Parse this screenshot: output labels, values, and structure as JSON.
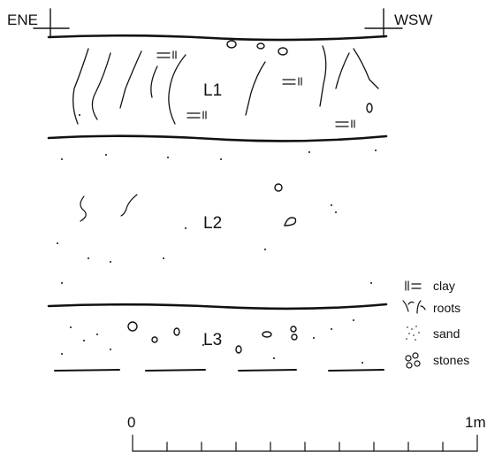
{
  "orientation": {
    "left": "ENE",
    "right": "WSW"
  },
  "layers": [
    {
      "label": "L1"
    },
    {
      "label": "L2"
    },
    {
      "label": "L3"
    }
  ],
  "legend": [
    {
      "label": "clay"
    },
    {
      "label": "roots"
    },
    {
      "label": "sand"
    },
    {
      "label": "stones"
    }
  ],
  "scale": {
    "start": "0",
    "end": "1m"
  }
}
